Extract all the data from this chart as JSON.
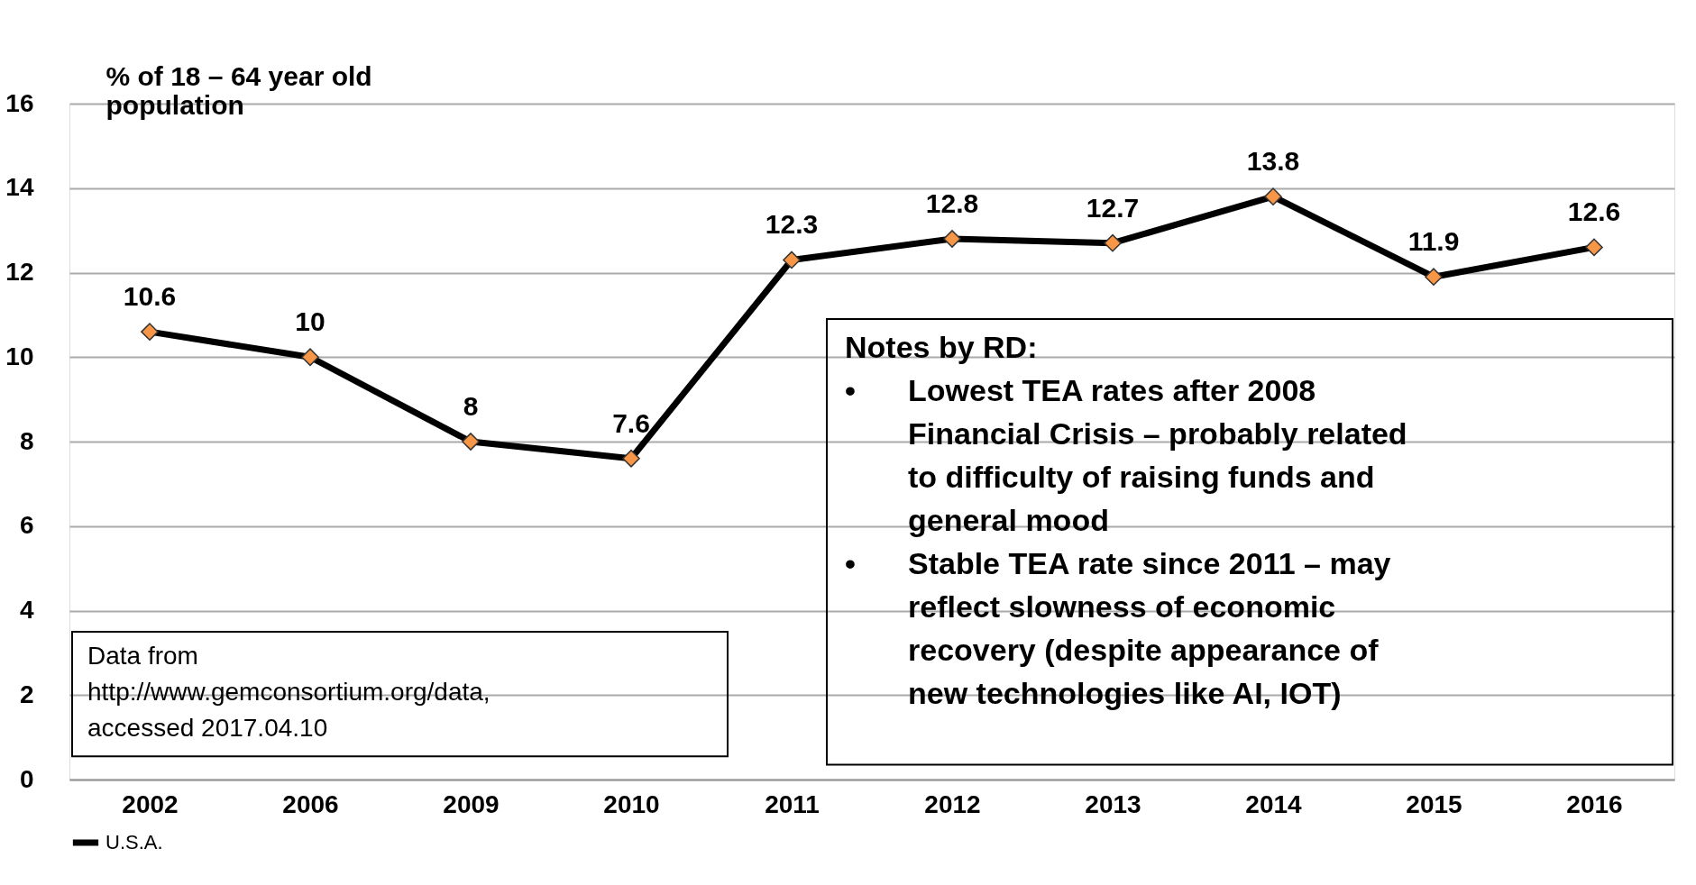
{
  "chart_data": {
    "type": "line",
    "ylabel": "% of 18 – 64 year old\npopulation",
    "categories": [
      "2002",
      "2006",
      "2009",
      "2010",
      "2011",
      "2012",
      "2013",
      "2014",
      "2015",
      "2016"
    ],
    "series": [
      {
        "name": "U.S.A.",
        "color": "#000000",
        "colors": [
          "#f79646",
          "#f79646",
          "#f79646",
          "#f79646",
          "#f79646",
          "#f79646",
          "#f79646",
          "#f79646",
          "#f79646",
          "#f79646"
        ],
        "values": [
          10.6,
          10,
          8,
          7.6,
          12.3,
          12.8,
          12.7,
          13.8,
          11.9,
          12.6
        ]
      }
    ],
    "ylim": [
      0,
      16
    ],
    "yticks": [
      0,
      2,
      4,
      6,
      8,
      10,
      12,
      14,
      16
    ],
    "grid": "y",
    "legend": "bottom",
    "marker": "diamond",
    "line_style": "solid",
    "data_labels": true,
    "annotations": [
      "Data from\nhttp://www.gemconsortium.org/data,\naccessed 2017.04.10",
      "Notes by RD:",
      "• Lowest TEA rates after 2008\nFinancial Crisis – probably related\nto difficulty of raising funds and\ngeneral mood",
      "• Stable TEA rate since 2011 – may\nreflect slowness of economic\nrecovery (despite appearance of\nnew technologies like AI, IOT)"
    ]
  }
}
